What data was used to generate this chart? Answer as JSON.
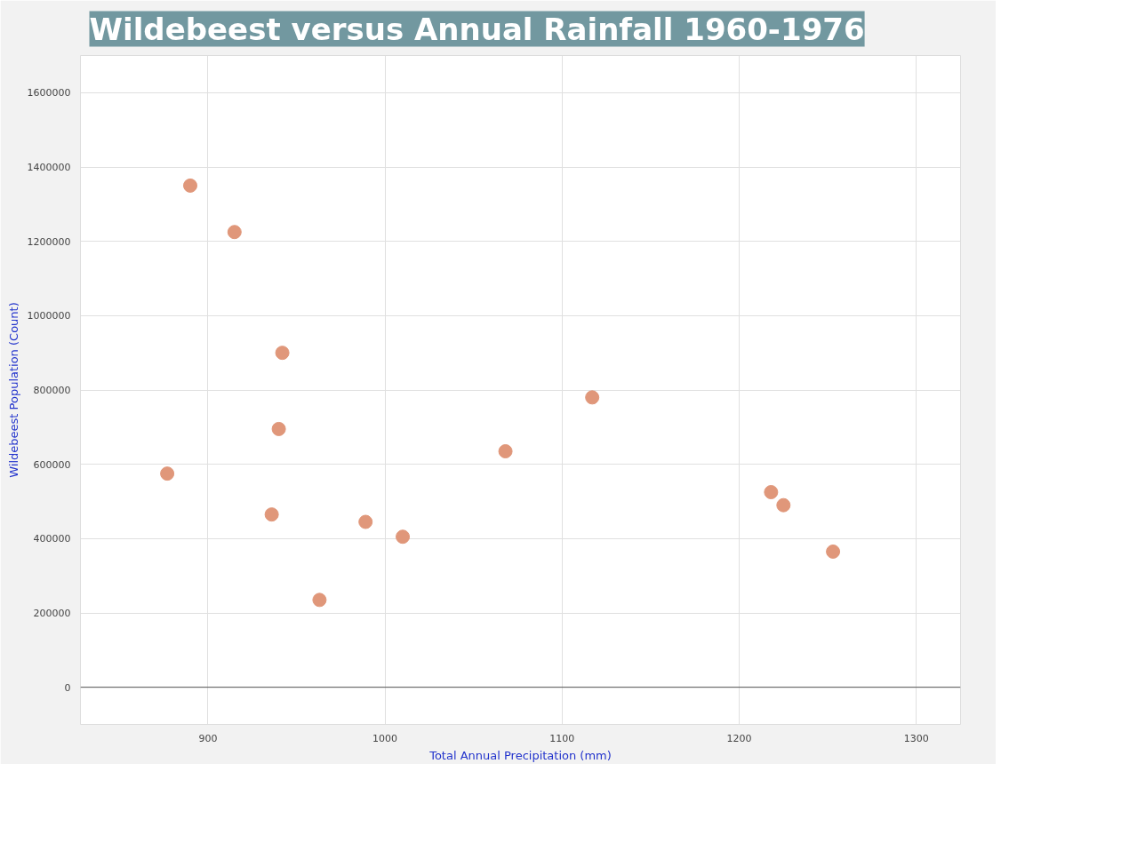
{
  "chart_data": {
    "type": "scatter",
    "title": "Wildebeest versus Annual Rainfall 1960-1976",
    "xlabel": "Total Annual Precipitation (mm)",
    "ylabel": "Wildebeest Population (Count)",
    "x": [
      890,
      915,
      942,
      940,
      877,
      936,
      963,
      989,
      1010,
      1068,
      1117,
      1218,
      1225,
      1253
    ],
    "series": [
      {
        "color": "#e0977a",
        "values": [
          1350000,
          1225000,
          900000,
          695000,
          575000,
          465000,
          235000,
          445000,
          405000,
          635000,
          780000,
          525000,
          490000,
          365000
        ]
      }
    ],
    "xlim": [
      828,
      1325
    ],
    "xticks": [
      900,
      1000,
      1100,
      1200,
      1300
    ],
    "ylim": [
      -100000,
      1700000
    ],
    "yticks": [
      0,
      200000,
      400000,
      600000,
      800000,
      1000000,
      1200000,
      1400000,
      1600000
    ],
    "ref_lines": [
      {
        "axis": "y",
        "value": 0,
        "color": "#555555"
      }
    ],
    "grid": true,
    "marker": "circle"
  }
}
